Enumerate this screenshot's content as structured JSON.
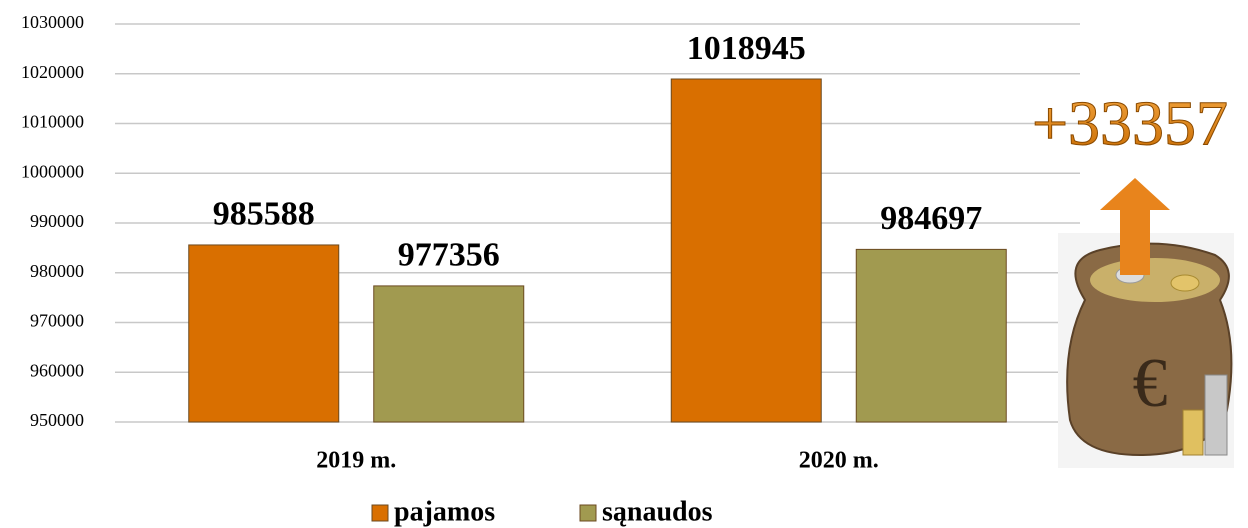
{
  "chart_data": {
    "type": "bar",
    "categories": [
      "2019 m.",
      "2020 m."
    ],
    "series": [
      {
        "name": "pajamos",
        "color": "#d96f00",
        "values": [
          985588,
          1018945
        ]
      },
      {
        "name": "sąnaudos",
        "color": "#a19a50",
        "values": [
          977356,
          984697
        ]
      }
    ],
    "ylim": [
      950000,
      1030000
    ],
    "yticks": [
      950000,
      960000,
      970000,
      980000,
      990000,
      1000000,
      1010000,
      1020000,
      1030000
    ],
    "grid": true,
    "legend": "bottom",
    "annotation": "+33357"
  }
}
